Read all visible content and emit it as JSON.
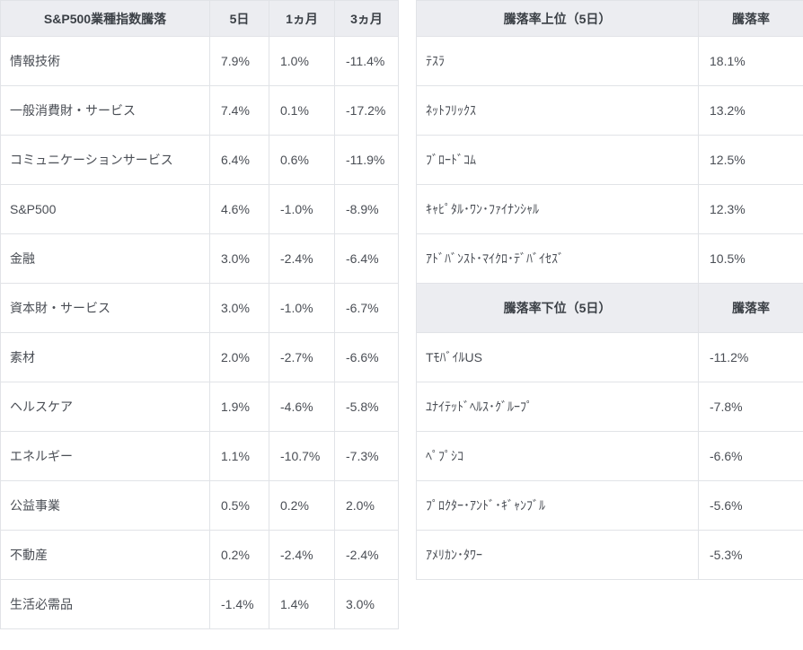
{
  "chart_data": [
    {
      "type": "table",
      "title": "S&P500業種指数騰落",
      "columns": [
        "S&P500業種指数騰落",
        "5日",
        "1ヵ月",
        "3ヵ月"
      ],
      "rows": [
        [
          "情報技術",
          "7.9%",
          "1.0%",
          "-11.4%"
        ],
        [
          "一般消費財・サービス",
          "7.4%",
          "0.1%",
          "-17.2%"
        ],
        [
          "コミュニケーションサービス",
          "6.4%",
          "0.6%",
          "-11.9%"
        ],
        [
          "S&P500",
          "4.6%",
          "-1.0%",
          "-8.9%"
        ],
        [
          "金融",
          "3.0%",
          "-2.4%",
          "-6.4%"
        ],
        [
          "資本財・サービス",
          "3.0%",
          "-1.0%",
          "-6.7%"
        ],
        [
          "素材",
          "2.0%",
          "-2.7%",
          "-6.6%"
        ],
        [
          "ヘルスケア",
          "1.9%",
          "-4.6%",
          "-5.8%"
        ],
        [
          "エネルギー",
          "1.1%",
          "-10.7%",
          "-7.3%"
        ],
        [
          "公益事業",
          "0.5%",
          "0.2%",
          "2.0%"
        ],
        [
          "不動産",
          "0.2%",
          "-2.4%",
          "-2.4%"
        ],
        [
          "生活必需品",
          "-1.4%",
          "1.4%",
          "3.0%"
        ]
      ]
    },
    {
      "type": "table",
      "title": "騰落率上位（5日）",
      "columns": [
        "騰落率上位（5日）",
        "騰落率"
      ],
      "rows": [
        [
          "ﾃｽﾗ",
          "18.1%"
        ],
        [
          "ﾈｯﾄﾌﾘｯｸｽ",
          "13.2%"
        ],
        [
          "ﾌﾞﾛｰﾄﾞｺﾑ",
          "12.5%"
        ],
        [
          "ｷｬﾋﾟﾀﾙ･ﾜﾝ･ﾌｧｲﾅﾝｼｬﾙ",
          "12.3%"
        ],
        [
          "ｱﾄﾞﾊﾞﾝｽﾄ･ﾏｲｸﾛ･ﾃﾞﾊﾞｲｾｽﾞ",
          "10.5%"
        ]
      ]
    },
    {
      "type": "table",
      "title": "騰落率下位（5日）",
      "columns": [
        "騰落率下位（5日）",
        "騰落率"
      ],
      "rows": [
        [
          "TﾓﾊﾞｲﾙUS",
          "-11.2%"
        ],
        [
          "ﾕﾅｲﾃｯﾄﾞﾍﾙｽ･ｸﾞﾙｰﾌﾟ",
          "-7.8%"
        ],
        [
          "ﾍﾟﾌﾟｼｺ",
          "-6.6%"
        ],
        [
          "ﾌﾟﾛｸﾀｰ･ｱﾝﾄﾞ･ｷﾞｬﾝﾌﾞﾙ",
          "-5.6%"
        ],
        [
          "ｱﾒﾘｶﾝ･ﾀﾜｰ",
          "-5.3%"
        ]
      ]
    }
  ],
  "colors": {
    "header_bg": "#ecedf1",
    "border": "#e1e3e7",
    "header_text": "#3b4046",
    "cell_text": "#4a4e55",
    "background": "#ffffff"
  }
}
